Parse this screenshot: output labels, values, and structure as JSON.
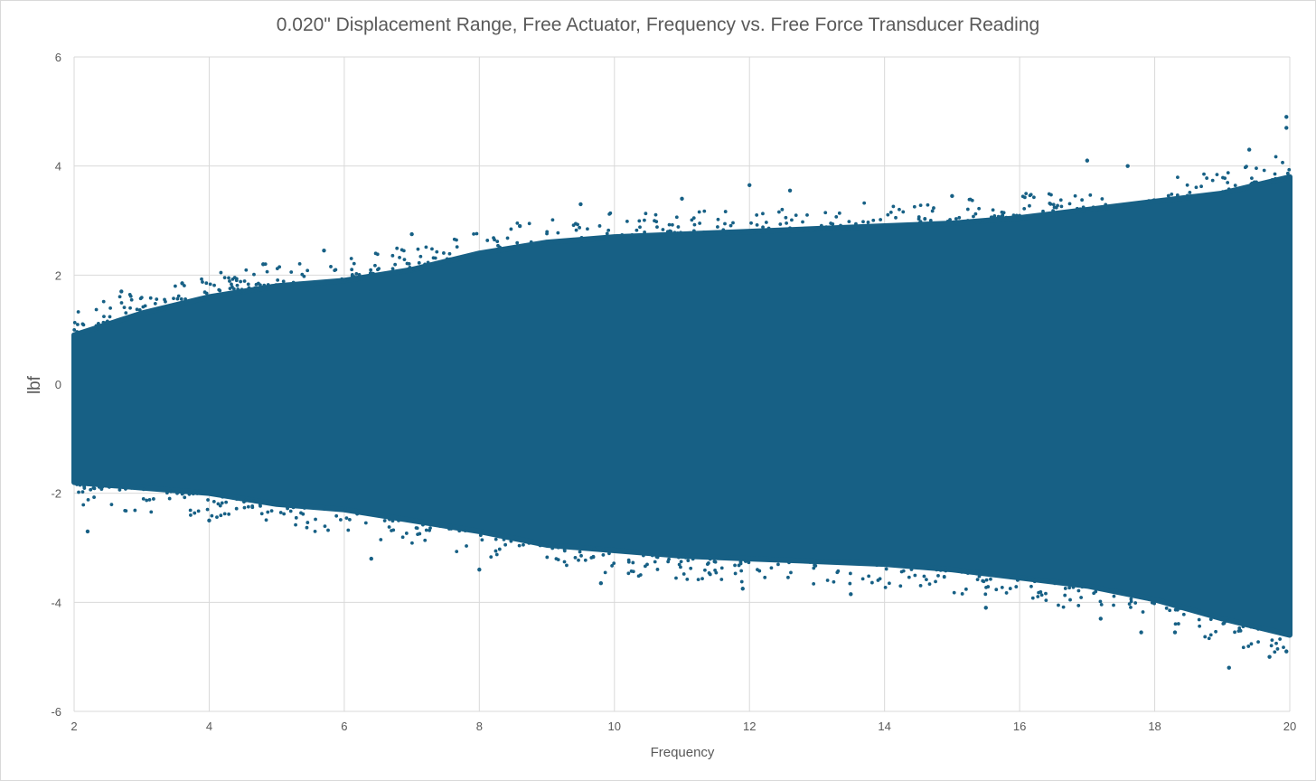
{
  "chart_data": {
    "type": "scatter",
    "title": "0.020\" Displacement Range, Free Actuator, Frequency vs. Free Force Transducer Reading",
    "xlabel": "Frequency",
    "ylabel": "lbf",
    "xlim": [
      2,
      20
    ],
    "ylim": [
      -6,
      6
    ],
    "x_ticks": [
      "2",
      "4",
      "6",
      "8",
      "10",
      "12",
      "14",
      "16",
      "18",
      "20"
    ],
    "y_ticks": [
      "6",
      "4",
      "2",
      "0",
      "-2",
      "-4",
      "-6"
    ],
    "grid": true,
    "legend": "none",
    "series_color": "#176085",
    "band_envelope": {
      "x": [
        2,
        3,
        4,
        5,
        6,
        7,
        8,
        9,
        10,
        11,
        12,
        13,
        14,
        15,
        16,
        17,
        18,
        19,
        20
      ],
      "upper": [
        0.9,
        1.3,
        1.6,
        1.8,
        1.9,
        2.1,
        2.4,
        2.6,
        2.7,
        2.75,
        2.8,
        2.85,
        2.9,
        2.95,
        3.05,
        3.2,
        3.35,
        3.5,
        3.8
      ],
      "lower": [
        -1.8,
        -1.9,
        -2.0,
        -2.2,
        -2.3,
        -2.5,
        -2.7,
        -2.95,
        -3.05,
        -3.15,
        -3.2,
        -3.25,
        -3.3,
        -3.4,
        -3.55,
        -3.7,
        -3.95,
        -4.3,
        -4.6
      ]
    },
    "outliers": [
      {
        "x": 2.2,
        "y": -2.7
      },
      {
        "x": 2.7,
        "y": 1.7
      },
      {
        "x": 3.6,
        "y": 1.85
      },
      {
        "x": 4.8,
        "y": 2.2
      },
      {
        "x": 5.7,
        "y": 2.45
      },
      {
        "x": 7.0,
        "y": 2.75
      },
      {
        "x": 8.6,
        "y": 2.9
      },
      {
        "x": 9.5,
        "y": 3.3
      },
      {
        "x": 11.0,
        "y": 3.4
      },
      {
        "x": 12.0,
        "y": 3.65
      },
      {
        "x": 12.6,
        "y": 3.55
      },
      {
        "x": 15.0,
        "y": 3.45
      },
      {
        "x": 17.0,
        "y": 4.1
      },
      {
        "x": 17.6,
        "y": 4.0
      },
      {
        "x": 19.4,
        "y": 4.3
      },
      {
        "x": 19.95,
        "y": 4.9
      },
      {
        "x": 19.95,
        "y": 4.7
      },
      {
        "x": 4.0,
        "y": -2.5
      },
      {
        "x": 6.4,
        "y": -3.2
      },
      {
        "x": 8.0,
        "y": -3.4
      },
      {
        "x": 9.8,
        "y": -3.65
      },
      {
        "x": 11.9,
        "y": -3.75
      },
      {
        "x": 13.5,
        "y": -3.85
      },
      {
        "x": 15.5,
        "y": -4.1
      },
      {
        "x": 17.2,
        "y": -4.3
      },
      {
        "x": 17.8,
        "y": -4.55
      },
      {
        "x": 18.3,
        "y": -4.55
      },
      {
        "x": 19.1,
        "y": -5.2
      },
      {
        "x": 19.7,
        "y": -5.0
      },
      {
        "x": 19.95,
        "y": -4.9
      }
    ]
  }
}
